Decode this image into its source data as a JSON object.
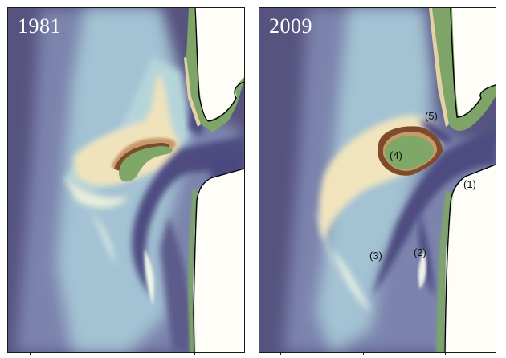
{
  "panels": [
    {
      "year": "1981"
    },
    {
      "year": "2009"
    }
  ],
  "labels": {
    "l1": "(1)",
    "l2": "(2)",
    "l3": "(3)",
    "l4": "(4)",
    "l5": "(5)"
  },
  "colors": {
    "deep_water": "#54517f",
    "channel": "#4e4c80",
    "mid_water": "#7d86b0",
    "shallow_water": "#a9cad6",
    "shoal": "#eef0da",
    "sand": "#f1e4bd",
    "sand_dark": "#c69a6b",
    "scarp": "#7e4a2a",
    "marsh": "#7ea567",
    "land": "#fffdf8",
    "coastline": "#000000"
  }
}
